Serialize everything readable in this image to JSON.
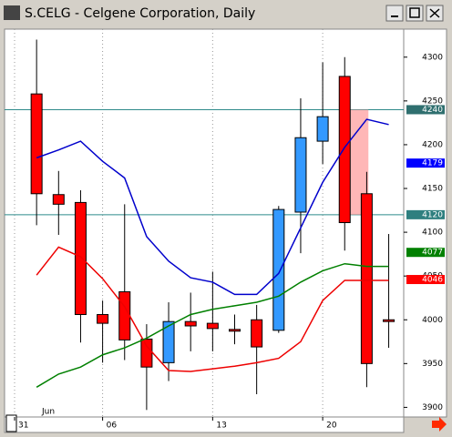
{
  "window_title": "S.CELG - Celgene Corporation, Daily",
  "chart_data": {
    "type": "candlestick",
    "categories": [
      "31",
      null,
      null,
      null,
      "06",
      null,
      null,
      null,
      null,
      "13",
      null,
      null,
      null,
      null,
      "20",
      null,
      null,
      null
    ],
    "x_annotation": "Jun",
    "open": [
      null,
      4258,
      4143,
      4134,
      4006,
      4032,
      3978,
      3951,
      3998,
      3996,
      3989,
      4000,
      3988,
      4123,
      4204,
      4278,
      4144,
      4000
    ],
    "high": [
      null,
      4320,
      4170,
      4148,
      4022,
      4132,
      3995,
      4020,
      4031,
      4055,
      4006,
      4017,
      4130,
      4253,
      4294,
      4300,
      4169,
      4098
    ],
    "low": [
      null,
      4108,
      4097,
      3974,
      3951,
      3954,
      3897,
      3930,
      3964,
      3964,
      3972,
      3915,
      3985,
      4076,
      4178,
      4079,
      3923,
      3968
    ],
    "close": [
      null,
      4144,
      4132,
      4006,
      3996,
      3977,
      3946,
      3998,
      3993,
      3990,
      3987,
      3969,
      4126,
      4208,
      4232,
      4111,
      3950,
      3998
    ],
    "up_color": "#3399ff",
    "down_color": "#ff0000",
    "series": [
      {
        "color": "#0000cc",
        "values": [
          null,
          4185,
          4194,
          4204,
          4181,
          4162,
          4095,
          4067,
          4048,
          4043,
          4029,
          4029,
          4053,
          4105,
          4157,
          4197,
          4229,
          4223
        ]
      },
      {
        "color": "#ee0000",
        "values": [
          null,
          4051,
          4083,
          4072,
          4047,
          4015,
          3970,
          3942,
          3941,
          3944,
          3947,
          3951,
          3956,
          3975,
          4022,
          4045,
          4045,
          4045
        ]
      },
      {
        "color": "#008000",
        "values": [
          null,
          3923,
          3938,
          3946,
          3960,
          3968,
          3979,
          3993,
          4006,
          4012,
          4016,
          4020,
          4027,
          4043,
          4056,
          4064,
          4061,
          4061
        ]
      }
    ],
    "hlines": [
      {
        "value": 4240,
        "color": "#2e8b8b"
      },
      {
        "value": 4120,
        "color": "#2e8b8b"
      }
    ],
    "price_markers": [
      {
        "value": 4240,
        "color": "#2f6f6f"
      },
      {
        "value": 4179,
        "color": "#0000ff"
      },
      {
        "value": 4120,
        "color": "#2f7f7f"
      },
      {
        "value": 4077,
        "color": "#008000"
      },
      {
        "value": 4046,
        "color": "#ff0000"
      }
    ],
    "ylim": [
      3889,
      4332
    ],
    "yticks": [
      3900,
      3950,
      4000,
      4050,
      4100,
      4150,
      4200,
      4250,
      4300
    ],
    "grid": true
  }
}
